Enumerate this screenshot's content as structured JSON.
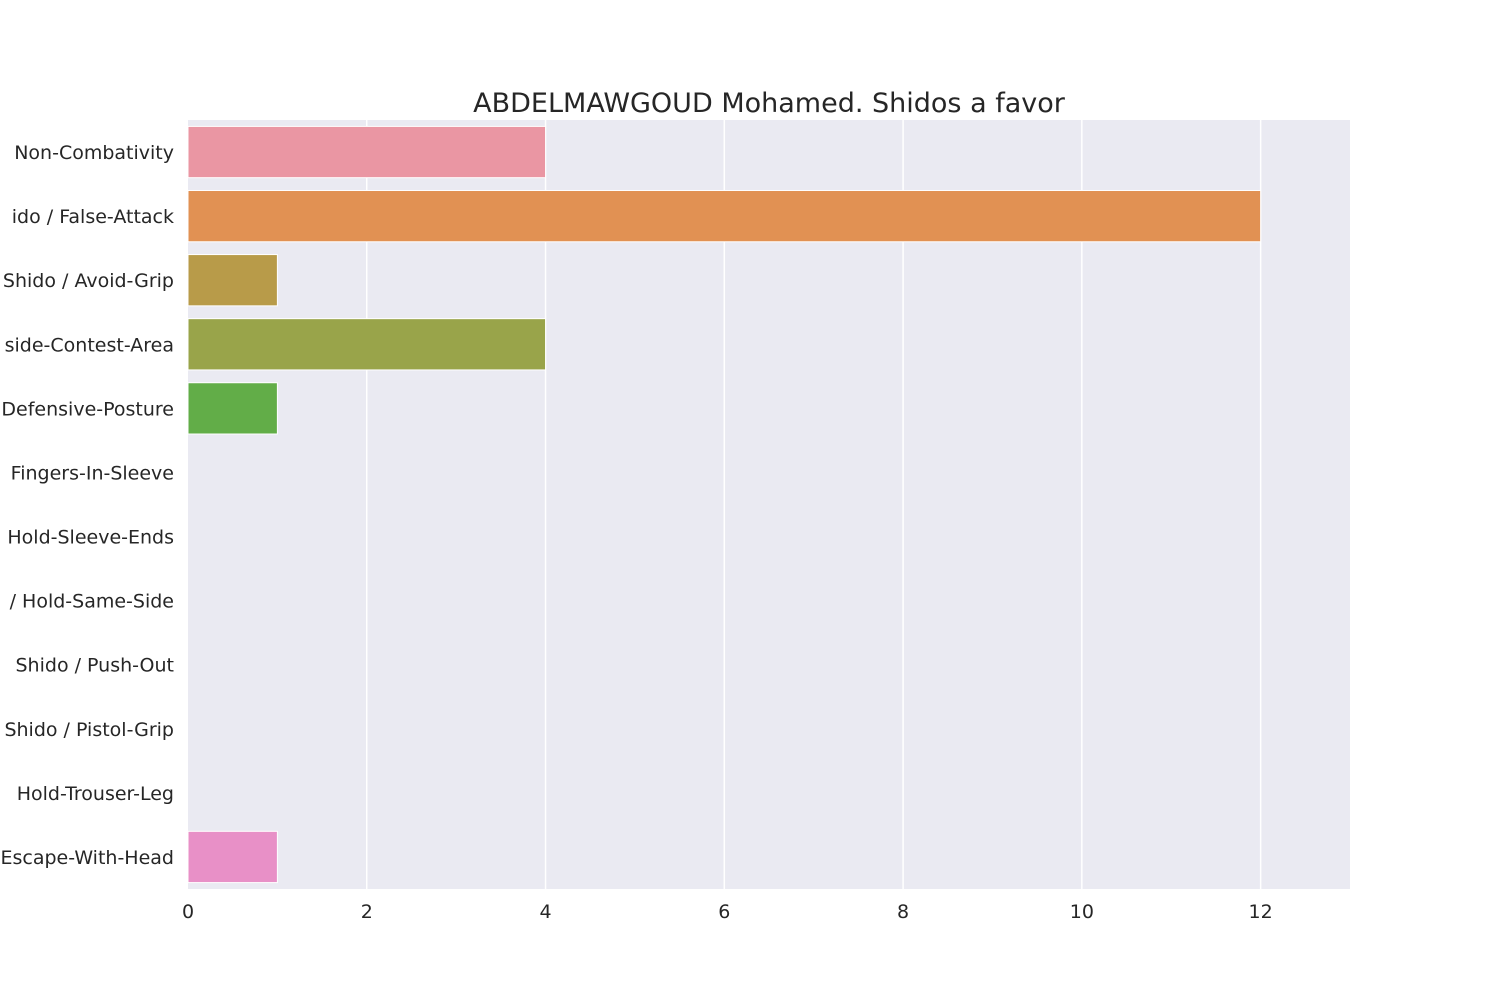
{
  "chart_data": {
    "type": "bar",
    "orientation": "horizontal",
    "title": "ABDELMAWGOUD Mohamed. Shidos a favor",
    "xlabel": "",
    "ylabel": "",
    "categories": [
      "Non-Combativity",
      "ido / False-Attack",
      "Shido / Avoid-Grip",
      "side-Contest-Area",
      "Defensive-Posture",
      "Fingers-In-Sleeve",
      "Hold-Sleeve-Ends",
      "/ Hold-Same-Side",
      "Shido / Push-Out",
      "Shido / Pistol-Grip",
      "Hold-Trouser-Leg",
      "Escape-With-Head"
    ],
    "values": [
      4,
      12,
      1,
      4,
      1,
      0,
      0,
      0,
      0,
      0,
      0,
      1
    ],
    "colors": [
      "#ea96a3",
      "#e19153",
      "#b89b49",
      "#99a44a",
      "#62ad48",
      "#4fb08c",
      "#52acaa",
      "#56a9bc",
      "#5da5da",
      "#a39ae9",
      "#d98de4",
      "#e890c7"
    ],
    "xlim": [
      0,
      13
    ],
    "xticks": [
      0,
      2,
      4,
      6,
      8,
      10,
      12
    ],
    "grid": true,
    "legend": "none",
    "background": "#eaeaf2",
    "grid_color": "#ffffff"
  }
}
